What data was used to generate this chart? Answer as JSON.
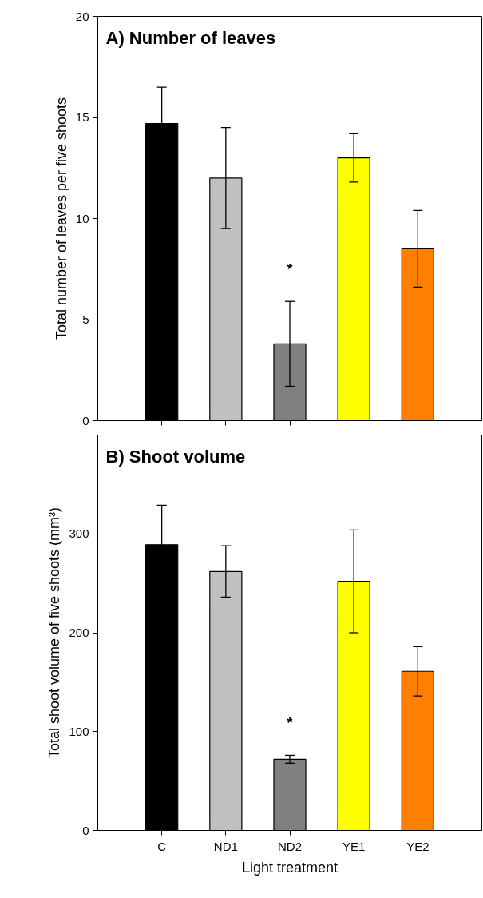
{
  "chart_data": [
    {
      "type": "bar",
      "title": "A) Number of leaves",
      "ylabel": "Total number of leaves per five shoots",
      "categories": [
        null,
        null,
        null,
        null,
        null
      ],
      "values": [
        14.7,
        12.0,
        3.8,
        13.0,
        8.5
      ],
      "errors": [
        1.8,
        2.5,
        2.1,
        1.2,
        1.9
      ],
      "colors": [
        "#000000",
        "#c0c0c0",
        "#808080",
        "#ffff00",
        "#ff8000"
      ],
      "ylim": [
        0,
        20
      ],
      "yticks": [
        0,
        5,
        10,
        15,
        20
      ],
      "grid": false,
      "tick_labels": "y",
      "annotations": [
        "*"
      ]
    },
    {
      "type": "bar",
      "title": "B) Shoot volume",
      "ylabel": "Total shoot volume of five shoots (mm³)",
      "xlabel": "Light treatment",
      "categories": [
        "C",
        "ND1",
        "ND2",
        "YE1",
        "YE2"
      ],
      "values": [
        289,
        262,
        72,
        252,
        161
      ],
      "errors": [
        40,
        26,
        4,
        52,
        25
      ],
      "colors": [
        "#000000",
        "#c0c0c0",
        "#808080",
        "#ffff00",
        "#ff8000"
      ],
      "ylim": [
        0,
        400
      ],
      "yticks": [
        0,
        100,
        200,
        300
      ],
      "grid": false,
      "annotations": [
        "*"
      ]
    }
  ]
}
